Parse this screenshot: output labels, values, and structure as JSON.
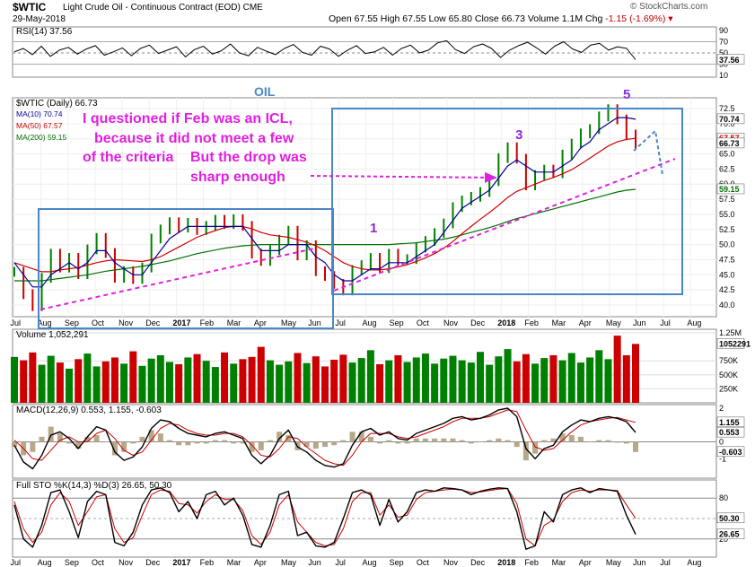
{
  "header": {
    "symbol": "$WTIC",
    "name": "Light Crude Oil - Continuous Contract (EOD) CME",
    "date": "29-May-2018",
    "ohlc": "Open 67.55  High 67.55  Low 65.80  Close 66.73  Volume 1.1M  Chg",
    "change": "-1.15 (-1.69%)",
    "credit": "© StockCharts.com"
  },
  "annotations": {
    "oil_label": "OIL",
    "note1": "I questioned if Feb was an ICL,",
    "note2": "because it did not meet a few",
    "note3": "of the criteria",
    "note4": "But the drop was",
    "note5": "sharp enough",
    "wave1": "1",
    "wave3": "3",
    "wave5": "5"
  },
  "colors": {
    "price_up": "#008000",
    "price_down": "#cc0000",
    "ma10": "#000099",
    "ma50": "#cc0000",
    "ma200": "#007000",
    "annotation": "#e020e0",
    "box": "#4a86c8",
    "wave_label": "#8a2be2"
  },
  "chart_data": [
    {
      "type": "line",
      "panel": "rsi",
      "legend": "RSI(14) 37.56",
      "ylim": [
        10,
        90
      ],
      "y_ticks": [
        "90",
        "70",
        "50",
        "30",
        "10"
      ],
      "last_value": "37.56",
      "values": [
        52,
        58,
        47,
        62,
        44,
        55,
        60,
        48,
        57,
        63,
        46,
        52,
        59,
        45,
        58,
        64,
        49,
        55,
        61,
        43,
        56,
        62,
        48,
        54,
        66,
        50,
        45,
        60,
        53,
        47,
        58,
        65,
        51,
        46,
        62,
        57,
        44,
        55,
        63,
        49,
        52,
        60,
        46,
        58,
        64,
        50,
        55,
        68,
        72,
        56,
        49,
        61,
        66,
        58,
        42,
        55,
        63,
        69,
        59,
        48,
        62,
        70,
        57,
        51,
        64,
        67,
        55,
        61,
        58,
        38
      ]
    },
    {
      "type": "line",
      "panel": "price",
      "legend": "$WTIC (Daily) 66.73",
      "ylim": [
        40,
        72.5
      ],
      "y_ticks": [
        "72.5",
        "70.0",
        "67.5",
        "65.0",
        "62.5",
        "60.0",
        "57.5",
        "55.0",
        "52.5",
        "50.0",
        "47.5",
        "45.0",
        "42.5",
        "40.0"
      ],
      "x_ticks": [
        "Jul",
        "Aug",
        "Sep",
        "Oct",
        "Nov",
        "Dec",
        "2017",
        "Feb",
        "Mar",
        "Apr",
        "May",
        "Jun",
        "Jul",
        "Aug",
        "Sep",
        "Oct",
        "Nov",
        "Dec",
        "2018",
        "Feb",
        "Mar",
        "Apr",
        "May",
        "Jun",
        "Jul",
        "Aug"
      ],
      "value_labels": [
        "70.74",
        "67.57",
        "66.73",
        "59.15"
      ],
      "series": [
        {
          "name": "$WTIC (Daily) 66.73",
          "values": [
            45.5,
            41.8,
            39.8,
            44.5,
            48.5,
            46.2,
            47.8,
            45.1,
            49.2,
            51.1,
            48.6,
            44.5,
            45.6,
            44.3,
            46.2,
            51.0,
            52.5,
            53.7,
            52.8,
            53.6,
            52.4,
            53.1,
            54.1,
            53.4,
            54.2,
            53.1,
            48.5,
            47.3,
            49.1,
            50.8,
            52.3,
            48.2,
            49.9,
            45.6,
            44.8,
            43.5,
            42.4,
            45.8,
            46.6,
            47.8,
            46.1,
            48.5,
            47.4,
            47.6,
            49.5,
            50.6,
            51.9,
            53.5,
            56.2,
            57.3,
            57.9,
            58.7,
            60.5,
            64.3,
            66.1,
            64.2,
            59.8,
            61.5,
            62.4,
            61.8,
            64.9,
            66.7,
            68.4,
            69.1,
            71.2,
            72.4,
            70.7,
            68.2,
            66.73
          ]
        },
        {
          "name": "MA(10) 70.74",
          "values": [
            47,
            45,
            43,
            43,
            45,
            46,
            47,
            46,
            47,
            49,
            49,
            47,
            46,
            45,
            45,
            47,
            49,
            51,
            52,
            53,
            53,
            53,
            53,
            53,
            53,
            53,
            51,
            49,
            49,
            49,
            50,
            50,
            50,
            48,
            47,
            45,
            44,
            44,
            45,
            46,
            46,
            47,
            47,
            47,
            48,
            49,
            50,
            52,
            54,
            56,
            57,
            58,
            59,
            61,
            63,
            64,
            63,
            62,
            62,
            62,
            63,
            64,
            66,
            67,
            69,
            70,
            71,
            71,
            70.74
          ]
        },
        {
          "name": "MA(50) 67.57",
          "values": [
            47,
            46.5,
            46,
            45.5,
            45.5,
            45.8,
            46,
            46.2,
            46.6,
            47,
            47.3,
            47.5,
            47.4,
            47.3,
            47.2,
            47.5,
            48,
            48.8,
            49.6,
            50.4,
            51.2,
            51.8,
            52.3,
            52.8,
            53,
            53,
            52.6,
            52,
            51.6,
            51.4,
            51.2,
            50.8,
            50.4,
            49.8,
            49,
            48,
            47,
            46.4,
            46,
            45.8,
            45.8,
            46,
            46.3,
            46.7,
            47.2,
            47.8,
            48.5,
            49.4,
            50.5,
            51.8,
            53,
            54.2,
            55.3,
            56.5,
            57.8,
            58.8,
            59.4,
            60,
            60.6,
            61.1,
            61.7,
            62.4,
            63.3,
            64.3,
            65.3,
            66.3,
            67,
            67.4,
            67.57
          ]
        },
        {
          "name": "MA(200) 59.15",
          "values": [
            44,
            44,
            44,
            44,
            44.2,
            44.4,
            44.6,
            44.8,
            45,
            45.3,
            45.6,
            45.8,
            46,
            46.2,
            46.4,
            46.7,
            47,
            47.3,
            47.7,
            48.1,
            48.5,
            48.8,
            49.1,
            49.4,
            49.6,
            49.8,
            49.9,
            50,
            50,
            50,
            50,
            50,
            50,
            50,
            50,
            50,
            50,
            50,
            50,
            50,
            50,
            50,
            50.1,
            50.2,
            50.3,
            50.5,
            50.7,
            50.9,
            51.2,
            51.6,
            52,
            52.4,
            52.8,
            53.3,
            53.8,
            54.3,
            54.7,
            55.1,
            55.5,
            55.9,
            56.3,
            56.7,
            57.1,
            57.5,
            57.9,
            58.3,
            58.7,
            59,
            59.15
          ]
        }
      ]
    },
    {
      "type": "bar",
      "panel": "volume",
      "legend": "Volume 1,052,291",
      "ylim": [
        0,
        1250000
      ],
      "y_ticks": [
        "1.25M",
        "1052291",
        "750K",
        "500K",
        "250K"
      ],
      "values": [
        820000,
        760000,
        900000,
        680000,
        840000,
        720000,
        610000,
        780000,
        880000,
        650000,
        740000,
        810000,
        700000,
        920000,
        660000,
        790000,
        850000,
        730000,
        690000,
        810000,
        870000,
        750000,
        640000,
        900000,
        700000,
        780000,
        820000,
        1000000,
        760000,
        680000,
        740000,
        890000,
        710000,
        830000,
        650000,
        770000,
        860000,
        720000,
        800000,
        940000,
        690000,
        760000,
        850000,
        730000,
        810000,
        880000,
        700000,
        790000,
        840000,
        760000,
        720000,
        910000,
        680000,
        830000,
        960000,
        740000,
        870000,
        700000,
        800000,
        850000,
        760000,
        890000,
        720000,
        810000,
        940000,
        780000,
        1200000,
        850000,
        1052291
      ]
    },
    {
      "type": "line",
      "panel": "macd",
      "legend": "MACD(12,26,9) 0.553, 1.155, -0.603",
      "ylim": [
        -2,
        2
      ],
      "y_ticks": [
        "2",
        "1",
        "0",
        "-1"
      ],
      "value_labels": [
        "1.155",
        "0.553",
        "-0.603"
      ],
      "series": [
        {
          "name": "MACD",
          "values": [
            -0.2,
            -1.2,
            -1.6,
            -0.8,
            0.4,
            0.6,
            0.2,
            -0.4,
            0.3,
            0.9,
            0.7,
            -0.6,
            -1.1,
            -0.9,
            -0.3,
            0.8,
            1.3,
            1.2,
            0.8,
            0.5,
            0.4,
            0.3,
            0.5,
            0.6,
            0.4,
            0.2,
            -0.8,
            -1.3,
            -0.8,
            0.2,
            0.7,
            -0.3,
            -0.6,
            -1.1,
            -1.4,
            -1.5,
            -1.3,
            -0.2,
            0.6,
            0.8,
            0.4,
            0.6,
            0.2,
            0.1,
            0.5,
            0.7,
            0.9,
            1.1,
            1.4,
            1.5,
            1.3,
            1.4,
            1.6,
            1.9,
            2.0,
            1.5,
            -0.4,
            -1.0,
            -0.4,
            -0.2,
            0.6,
            1.0,
            1.3,
            1.2,
            1.4,
            1.5,
            1.4,
            1.2,
            0.553
          ]
        },
        {
          "name": "Signal",
          "values": [
            0.1,
            -0.4,
            -1.0,
            -1.1,
            -0.5,
            0.1,
            0.3,
            0.0,
            0.0,
            0.5,
            0.7,
            0.2,
            -0.5,
            -0.8,
            -0.6,
            0.1,
            0.8,
            1.1,
            1.0,
            0.7,
            0.5,
            0.4,
            0.4,
            0.5,
            0.5,
            0.3,
            -0.2,
            -0.8,
            -0.9,
            -0.4,
            0.3,
            0.2,
            -0.3,
            -0.7,
            -1.1,
            -1.3,
            -1.4,
            -0.8,
            0.0,
            0.5,
            0.5,
            0.5,
            0.3,
            0.2,
            0.3,
            0.5,
            0.7,
            0.9,
            1.2,
            1.4,
            1.4,
            1.4,
            1.5,
            1.7,
            1.9,
            1.8,
            0.7,
            -0.3,
            -0.5,
            -0.4,
            0.1,
            0.6,
            1.0,
            1.2,
            1.3,
            1.4,
            1.45,
            1.3,
            1.155
          ]
        },
        {
          "name": "Histogram",
          "values": [
            -0.3,
            -0.8,
            -0.6,
            0.3,
            0.9,
            0.5,
            -0.1,
            -0.4,
            0.3,
            0.4,
            0.0,
            -0.8,
            -0.6,
            -0.1,
            0.3,
            0.7,
            0.5,
            0.1,
            -0.2,
            -0.2,
            -0.1,
            -0.1,
            0.1,
            0.1,
            -0.1,
            -0.1,
            -0.6,
            -0.5,
            0.1,
            0.6,
            0.4,
            -0.5,
            -0.3,
            -0.4,
            -0.3,
            -0.2,
            0.1,
            0.6,
            0.6,
            0.3,
            -0.1,
            0.1,
            -0.1,
            -0.1,
            0.2,
            0.2,
            0.2,
            0.2,
            0.2,
            0.1,
            -0.1,
            0.0,
            0.1,
            0.2,
            0.1,
            -0.3,
            -1.1,
            -0.7,
            0.1,
            0.2,
            0.5,
            0.4,
            0.3,
            0.0,
            0.1,
            0.1,
            -0.05,
            -0.1,
            -0.603
          ]
        }
      ]
    },
    {
      "type": "line",
      "panel": "stochastics",
      "legend": "Full STO %K(14,3) %D(3) 26.65, 50.30",
      "ylim": [
        0,
        100
      ],
      "y_ticks": [
        "80",
        "50",
        "20"
      ],
      "value_labels": [
        "50.30",
        "26.65"
      ],
      "series": [
        {
          "name": "%K",
          "values": [
            70,
            20,
            8,
            40,
            88,
            92,
            60,
            22,
            75,
            90,
            85,
            15,
            10,
            30,
            70,
            92,
            95,
            88,
            60,
            75,
            50,
            85,
            90,
            70,
            80,
            55,
            12,
            8,
            40,
            85,
            90,
            25,
            30,
            10,
            8,
            15,
            50,
            88,
            92,
            85,
            40,
            78,
            45,
            60,
            88,
            92,
            90,
            95,
            94,
            92,
            85,
            90,
            93,
            95,
            94,
            60,
            5,
            10,
            60,
            45,
            85,
            92,
            95,
            88,
            94,
            92,
            90,
            55,
            26.65
          ]
        },
        {
          "name": "%D",
          "values": [
            75,
            35,
            15,
            30,
            70,
            88,
            75,
            40,
            60,
            82,
            85,
            35,
            15,
            22,
            55,
            85,
            92,
            90,
            72,
            70,
            58,
            75,
            85,
            78,
            78,
            62,
            25,
            12,
            30,
            70,
            85,
            45,
            30,
            15,
            10,
            12,
            35,
            75,
            88,
            88,
            55,
            70,
            52,
            55,
            78,
            88,
            90,
            92,
            93,
            92,
            88,
            89,
            91,
            93,
            94,
            72,
            20,
            10,
            40,
            48,
            75,
            88,
            92,
            90,
            92,
            92,
            91,
            70,
            50.3
          ]
        }
      ]
    }
  ]
}
